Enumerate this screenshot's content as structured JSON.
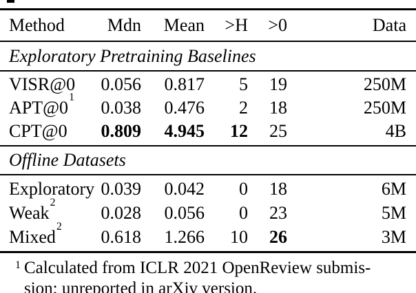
{
  "page": {
    "background": "#ffffff",
    "text_color": "#000000",
    "rule_color": "#000000"
  },
  "table": {
    "columns": [
      "Method",
      "Mdn",
      "Mean",
      ">H",
      ">0",
      "Data"
    ],
    "sections": [
      {
        "title": "Exploratory Pretraining Baselines",
        "rows": [
          {
            "method": "VISR@0",
            "method_sup": "",
            "values": [
              "0.056",
              "0.817",
              "5",
              "19",
              "250M"
            ],
            "bold": [
              false,
              false,
              false,
              false,
              false
            ]
          },
          {
            "method": "APT@0",
            "method_sup": "1",
            "values": [
              "0.038",
              "0.476",
              "2",
              "18",
              "250M"
            ],
            "bold": [
              false,
              false,
              false,
              false,
              false
            ]
          },
          {
            "method": "CPT@0",
            "method_sup": "",
            "values": [
              "0.809",
              "4.945",
              "12",
              "25",
              "4B"
            ],
            "bold": [
              true,
              true,
              true,
              false,
              false
            ]
          }
        ]
      },
      {
        "title": "Offline Datasets",
        "rows": [
          {
            "method": "Exploratory",
            "method_sup": "",
            "values": [
              "0.039",
              "0.042",
              "0",
              "18",
              "6M"
            ],
            "bold": [
              false,
              false,
              false,
              false,
              false
            ]
          },
          {
            "method": "Weak",
            "method_sup": "2",
            "values": [
              "0.028",
              "0.056",
              "0",
              "23",
              "5M"
            ],
            "bold": [
              false,
              false,
              false,
              false,
              false
            ]
          },
          {
            "method": "Mixed",
            "method_sup": "2",
            "values": [
              "0.618",
              "1.266",
              "10",
              "26",
              "3M"
            ],
            "bold": [
              false,
              false,
              false,
              true,
              false
            ]
          }
        ]
      }
    ],
    "footnote": {
      "marker": "1",
      "line1": "Calculated from ICLR 2021 OpenReview submis-",
      "line2": "sion; unreported in arXiv version."
    }
  }
}
